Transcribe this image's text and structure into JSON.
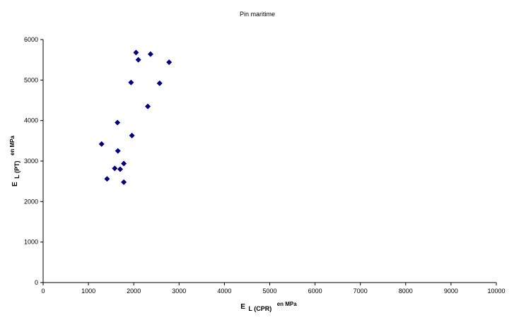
{
  "chart_data": {
    "type": "scatter",
    "title": "Pin maritime",
    "xlabel": {
      "main": "E",
      "sub": "L (CPR)",
      "sup": "en MPa"
    },
    "ylabel": {
      "main": "E",
      "sub": "L (PT)",
      "sup": "en MPa"
    },
    "xlim": [
      0,
      10000
    ],
    "ylim": [
      0,
      6000
    ],
    "xticks": [
      0,
      1000,
      2000,
      3000,
      4000,
      5000,
      6000,
      7000,
      8000,
      9000,
      10000
    ],
    "yticks": [
      0,
      1000,
      2000,
      3000,
      4000,
      5000,
      6000
    ],
    "grid": false,
    "marker": "diamond",
    "marker_color": "#000080",
    "points": [
      {
        "x": 2050,
        "y": 5680
      },
      {
        "x": 2370,
        "y": 5640
      },
      {
        "x": 2100,
        "y": 5500
      },
      {
        "x": 2780,
        "y": 5440
      },
      {
        "x": 1940,
        "y": 4940
      },
      {
        "x": 2570,
        "y": 4920
      },
      {
        "x": 2310,
        "y": 4350
      },
      {
        "x": 1640,
        "y": 3950
      },
      {
        "x": 1960,
        "y": 3630
      },
      {
        "x": 1290,
        "y": 3420
      },
      {
        "x": 1650,
        "y": 3250
      },
      {
        "x": 1780,
        "y": 2940
      },
      {
        "x": 1580,
        "y": 2820
      },
      {
        "x": 1700,
        "y": 2800
      },
      {
        "x": 1410,
        "y": 2560
      },
      {
        "x": 1780,
        "y": 2480
      }
    ]
  }
}
